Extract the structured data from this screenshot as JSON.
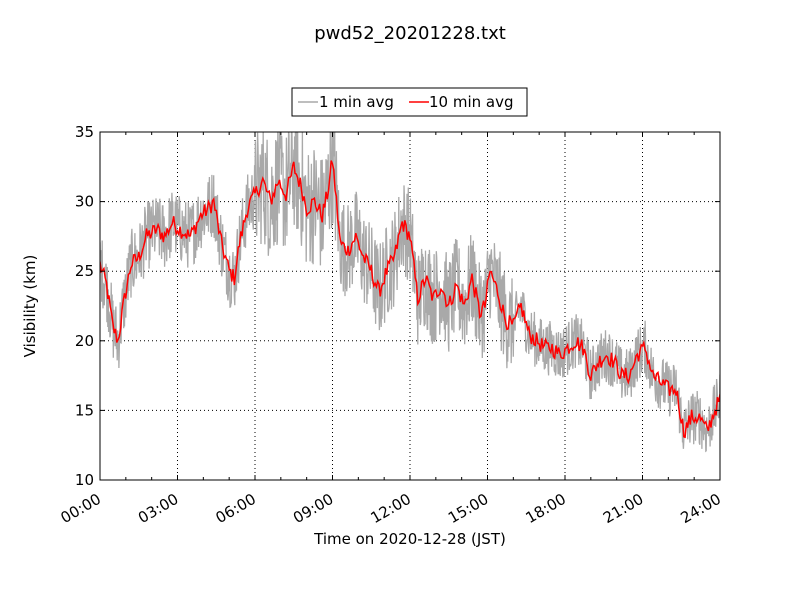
{
  "chart_data": {
    "type": "line",
    "title": "pwd52_20201228.txt",
    "xlabel": "Time on 2020-12-28 (JST)",
    "ylabel": "Visibility (km)",
    "xlim_hours": [
      0,
      24
    ],
    "ylim": [
      10,
      35
    ],
    "x_ticks": [
      "00:00",
      "03:00",
      "06:00",
      "09:00",
      "12:00",
      "15:00",
      "18:00",
      "21:00",
      "24:00"
    ],
    "y_ticks": [
      "10",
      "15",
      "20",
      "25",
      "30",
      "35"
    ],
    "grid": true,
    "legend_position": "top-center",
    "series": [
      {
        "name": "1 min avg",
        "color": "#a9a9a9",
        "noise_amplitude_km": 2.5
      },
      {
        "name": "10 min avg",
        "color": "#ff0000",
        "x_hours": [
          0,
          0.25,
          0.5,
          0.7,
          0.9,
          1.2,
          1.5,
          1.8,
          2.2,
          2.5,
          2.8,
          3.1,
          3.5,
          3.9,
          4.2,
          4.4,
          4.7,
          5.0,
          5.2,
          5.4,
          5.7,
          6.0,
          6.3,
          6.6,
          6.9,
          7.2,
          7.5,
          7.8,
          8.0,
          8.3,
          8.6,
          8.8,
          9.0,
          9.3,
          9.6,
          9.9,
          10.2,
          10.5,
          10.8,
          11.1,
          11.4,
          11.7,
          12.0,
          12.3,
          12.6,
          12.9,
          13.2,
          13.5,
          13.8,
          14.1,
          14.4,
          14.7,
          14.9,
          15.1,
          15.4,
          15.7,
          16.0,
          16.3,
          16.6,
          16.9,
          17.2,
          17.5,
          17.8,
          18.1,
          18.4,
          18.7,
          19.0,
          19.3,
          19.6,
          19.9,
          20.2,
          20.5,
          20.8,
          21.1,
          21.4,
          21.7,
          22.0,
          22.3,
          22.6,
          22.9,
          23.2,
          23.5,
          23.8,
          24.0
        ],
        "values": [
          25.5,
          24.0,
          21.0,
          20.0,
          22.5,
          25.5,
          26.0,
          27.5,
          28.0,
          27.5,
          28.5,
          28.0,
          27.5,
          29.0,
          29.5,
          30.0,
          27.0,
          25.0,
          24.5,
          27.0,
          29.5,
          30.5,
          31.5,
          30.0,
          31.5,
          30.5,
          32.5,
          31.0,
          29.5,
          30.0,
          29.0,
          30.5,
          33.0,
          27.0,
          26.5,
          27.5,
          26.0,
          25.0,
          23.5,
          25.0,
          26.0,
          28.5,
          27.5,
          23.0,
          24.5,
          23.0,
          24.0,
          22.5,
          24.0,
          22.5,
          24.5,
          22.0,
          22.5,
          25.0,
          23.5,
          21.5,
          21.0,
          22.5,
          20.5,
          20.0,
          19.5,
          19.5,
          19.0,
          19.5,
          20.0,
          19.5,
          17.5,
          18.5,
          19.0,
          18.5,
          17.5,
          17.5,
          19.0,
          19.5,
          17.5,
          17.0,
          16.5,
          16.5,
          13.5,
          14.5,
          14.5,
          13.5,
          15.0,
          15.8
        ]
      }
    ]
  }
}
